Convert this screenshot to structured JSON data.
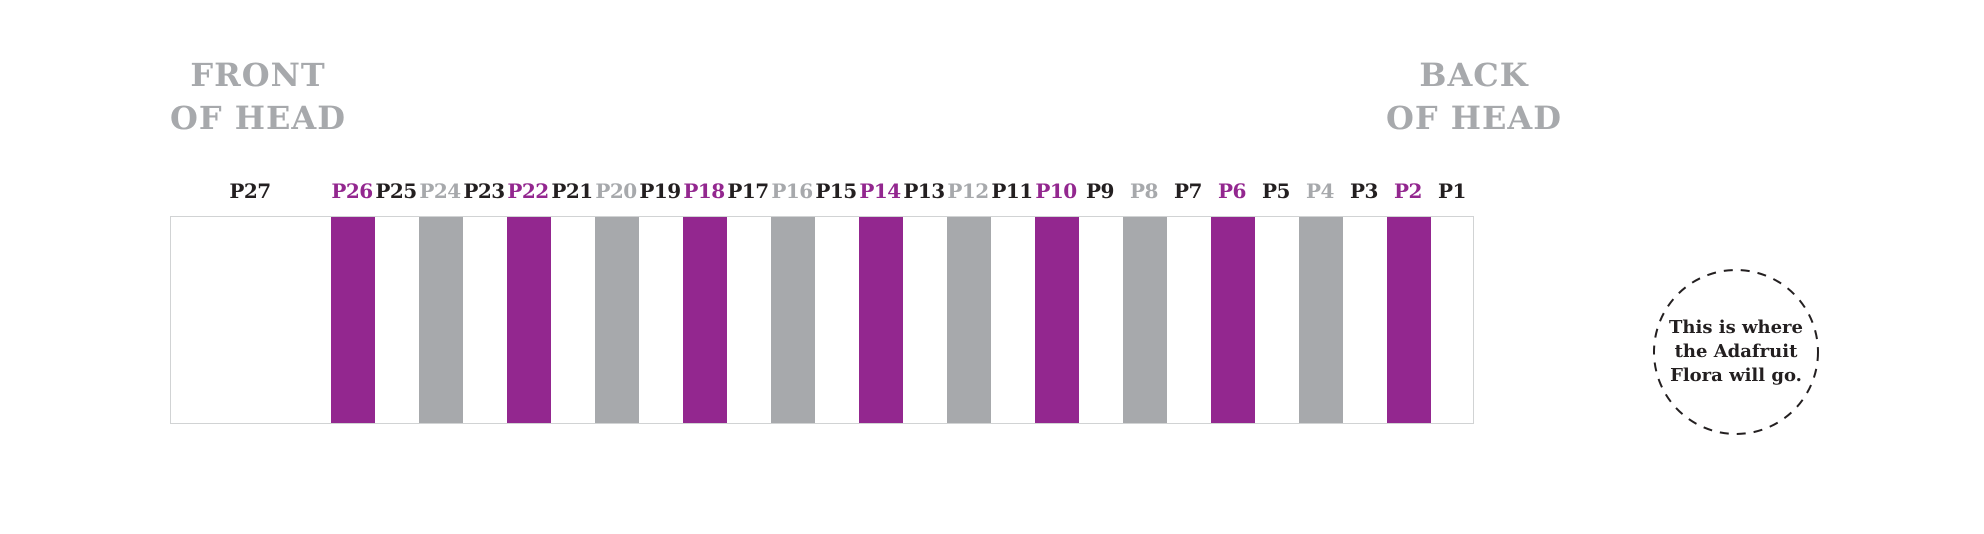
{
  "headings": {
    "front_line1": "FRONT",
    "front_line2": "OF HEAD",
    "back_line1": "BACK",
    "back_line2": "OF HEAD"
  },
  "annotation": {
    "line1": "This is where",
    "line2": "the Adafruit",
    "line3": "Flora will go."
  },
  "colors": {
    "purple": "#93278F",
    "gray": "#A7A9AC",
    "black": "#231F20",
    "white": "#FFFFFF",
    "heading_gray": "#A7A9AC",
    "box_border": "#D1D3D4",
    "background": "#FFFFFF"
  },
  "band": {
    "columns": [
      {
        "label": "P27",
        "label_color": "black",
        "stripe": "white",
        "wide": true
      },
      {
        "label": "P26",
        "label_color": "purple",
        "stripe": "purple"
      },
      {
        "label": "P25",
        "label_color": "black",
        "stripe": "white"
      },
      {
        "label": "P24",
        "label_color": "gray",
        "stripe": "gray"
      },
      {
        "label": "P23",
        "label_color": "black",
        "stripe": "white"
      },
      {
        "label": "P22",
        "label_color": "purple",
        "stripe": "purple"
      },
      {
        "label": "P21",
        "label_color": "black",
        "stripe": "white"
      },
      {
        "label": "P20",
        "label_color": "gray",
        "stripe": "gray"
      },
      {
        "label": "P19",
        "label_color": "black",
        "stripe": "white"
      },
      {
        "label": "P18",
        "label_color": "purple",
        "stripe": "purple"
      },
      {
        "label": "P17",
        "label_color": "black",
        "stripe": "white"
      },
      {
        "label": "P16",
        "label_color": "gray",
        "stripe": "gray"
      },
      {
        "label": "P15",
        "label_color": "black",
        "stripe": "white"
      },
      {
        "label": "P14",
        "label_color": "purple",
        "stripe": "purple"
      },
      {
        "label": "P13",
        "label_color": "black",
        "stripe": "white"
      },
      {
        "label": "P12",
        "label_color": "gray",
        "stripe": "gray"
      },
      {
        "label": "P11",
        "label_color": "black",
        "stripe": "white"
      },
      {
        "label": "P10",
        "label_color": "purple",
        "stripe": "purple"
      },
      {
        "label": "P9",
        "label_color": "black",
        "stripe": "white"
      },
      {
        "label": "P8",
        "label_color": "gray",
        "stripe": "gray"
      },
      {
        "label": "P7",
        "label_color": "black",
        "stripe": "white"
      },
      {
        "label": "P6",
        "label_color": "purple",
        "stripe": "purple"
      },
      {
        "label": "P5",
        "label_color": "black",
        "stripe": "white"
      },
      {
        "label": "P4",
        "label_color": "gray",
        "stripe": "gray"
      },
      {
        "label": "P3",
        "label_color": "black",
        "stripe": "white"
      },
      {
        "label": "P2",
        "label_color": "purple",
        "stripe": "purple"
      },
      {
        "label": "P1",
        "label_color": "black",
        "stripe": "white"
      }
    ]
  }
}
